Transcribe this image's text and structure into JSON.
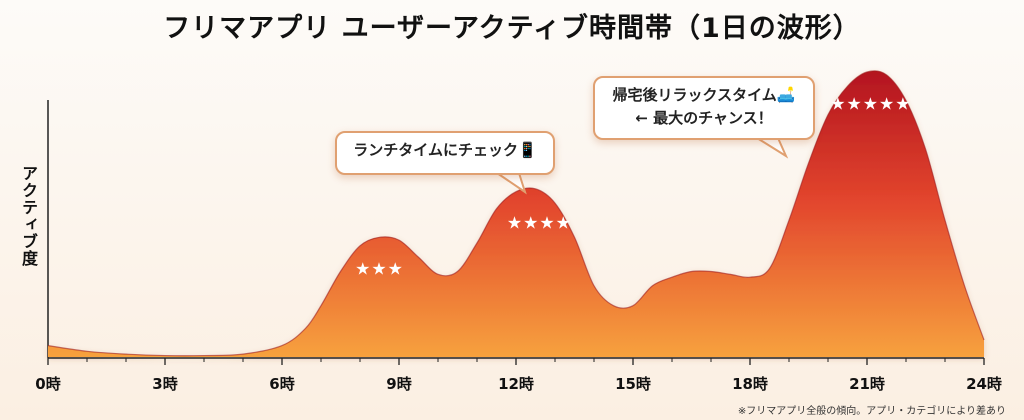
{
  "title": "フリマアプリ ユーザーアクティブ時間帯（1日の波形）",
  "footnote": "※フリマアプリ全般の傾向。アプリ・カテゴリにより差あり",
  "colors": {
    "peak_top": "#b3141f",
    "mid": "#e2452d",
    "base": "#f7a23e"
  },
  "chart_data": {
    "type": "area",
    "title": "フリマアプリ ユーザーアクティブ時間帯（1日の波形）",
    "ylabel": "アクティブ度",
    "xlabel": "",
    "xlim": [
      0,
      24
    ],
    "ylim": [
      0,
      100
    ],
    "x_ticks": [
      "0時",
      "3時",
      "6時",
      "9時",
      "12時",
      "15時",
      "18時",
      "21時",
      "24時"
    ],
    "x_tick_values": [
      0,
      3,
      6,
      9,
      12,
      15,
      18,
      21,
      24
    ],
    "x": [
      0,
      1,
      2,
      3,
      4,
      5,
      6,
      6.6,
      7,
      7.5,
      8,
      8.5,
      9,
      9.5,
      10,
      10.5,
      11,
      11.5,
      12,
      12.5,
      13,
      13.5,
      14,
      14.5,
      15,
      15.5,
      16,
      16.5,
      17,
      17.5,
      18,
      18.5,
      19,
      19.5,
      20,
      20.5,
      21,
      21.5,
      22,
      22.5,
      23,
      23.5,
      24
    ],
    "values": [
      4,
      2,
      1,
      0.5,
      0.5,
      1,
      4,
      10,
      18,
      30,
      39,
      42,
      41,
      35,
      29,
      30,
      40,
      52,
      58,
      59,
      54,
      42,
      25,
      18,
      18,
      25,
      28,
      30,
      30,
      29,
      28,
      31,
      48,
      68,
      85,
      95,
      100,
      99,
      90,
      73,
      48,
      25,
      6
    ],
    "annotations": [
      {
        "x": 8.5,
        "stars": "★★★"
      },
      {
        "x": 12.6,
        "stars": "★★★★",
        "label": [
          "ランチタイムにチェック📱"
        ]
      },
      {
        "x": 21.1,
        "stars": "★★★★★",
        "label": [
          "帰宅後リラックスタイム🛋️",
          "← 最大のチャンス！"
        ]
      }
    ],
    "grid": false,
    "legend": "none"
  }
}
